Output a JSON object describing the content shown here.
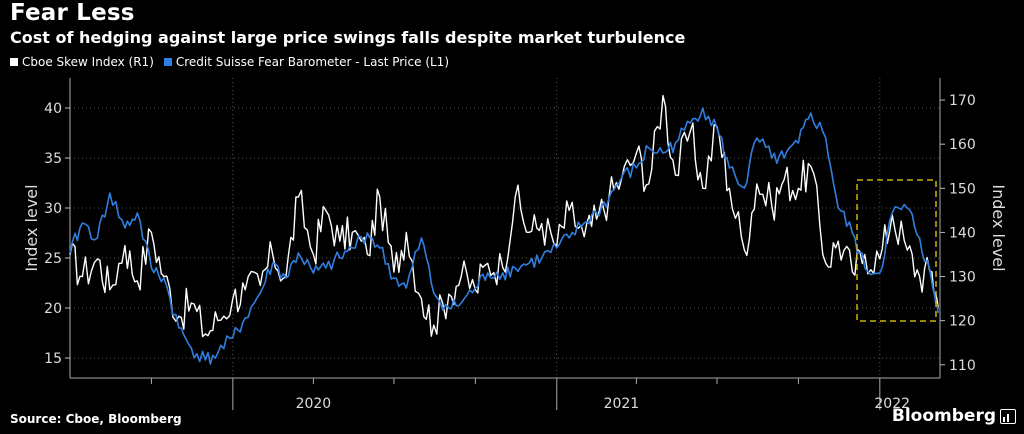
{
  "header": {
    "title": "Fear Less",
    "subtitle": "Cost of hedging against large price swings falls despite market turbulence"
  },
  "footer": {
    "source": "Source: Cboe, Bloomberg",
    "brand": "Bloomberg"
  },
  "colors": {
    "background": "#000000",
    "grid": "#5a5a5a",
    "skew": "#ffffff",
    "fear": "#2f7fe0",
    "highlight_box": "#c8b400"
  },
  "chart_data": {
    "type": "line",
    "legend": [
      "Cboe Skew Index (R1)",
      "Credit Suisse Fear Barometer - Last Price (L1)"
    ],
    "legend_placement": "top-left",
    "grid": true,
    "left_axis": {
      "label": "Index level",
      "ylim": [
        13,
        43
      ],
      "ticks": [
        15,
        20,
        25,
        30,
        35,
        40
      ]
    },
    "right_axis": {
      "label": "Index level",
      "ylim": [
        107,
        175
      ],
      "ticks": [
        110,
        120,
        130,
        140,
        150,
        160,
        170
      ]
    },
    "x_axis": {
      "range": [
        "2019-07-01",
        "2022-03-10"
      ],
      "tick_labels": [
        {
          "label": "2020",
          "at": "2020-04-01"
        },
        {
          "label": "2021",
          "at": "2021-03-15"
        },
        {
          "label": "2022",
          "at": "2022-01-15"
        }
      ],
      "major_ticks": [
        "2020-01-01",
        "2021-01-01",
        "2022-01-01"
      ],
      "minor_ticks": [
        "2019-10-01",
        "2020-04-01",
        "2020-07-01",
        "2020-10-01",
        "2021-04-01",
        "2021-07-01",
        "2021-10-01"
      ]
    },
    "series": [
      {
        "name": "Credit Suisse Fear Barometer - Last Price (L1)",
        "axis": "left",
        "points": [
          [
            "2019-07-01",
            25.5
          ],
          [
            "2019-07-15",
            28.5
          ],
          [
            "2019-08-01",
            27.0
          ],
          [
            "2019-08-15",
            31.5
          ],
          [
            "2019-09-01",
            28.0
          ],
          [
            "2019-09-15",
            29.5
          ],
          [
            "2019-10-01",
            24.0
          ],
          [
            "2019-10-15",
            23.0
          ],
          [
            "2019-11-01",
            18.0
          ],
          [
            "2019-11-15",
            16.0
          ],
          [
            "2019-12-01",
            14.8
          ],
          [
            "2019-12-15",
            15.5
          ],
          [
            "2020-01-01",
            17.0
          ],
          [
            "2020-01-15",
            19.0
          ],
          [
            "2020-02-01",
            21.5
          ],
          [
            "2020-02-15",
            24.5
          ],
          [
            "2020-03-01",
            23.0
          ],
          [
            "2020-03-15",
            25.5
          ],
          [
            "2020-04-01",
            23.5
          ],
          [
            "2020-04-15",
            24.0
          ],
          [
            "2020-05-01",
            25.0
          ],
          [
            "2020-05-15",
            26.0
          ],
          [
            "2020-06-01",
            27.5
          ],
          [
            "2020-06-15",
            26.0
          ],
          [
            "2020-07-01",
            23.0
          ],
          [
            "2020-07-15",
            22.0
          ],
          [
            "2020-08-01",
            27.0
          ],
          [
            "2020-08-15",
            21.5
          ],
          [
            "2020-09-01",
            20.0
          ],
          [
            "2020-09-15",
            20.5
          ],
          [
            "2020-10-01",
            22.0
          ],
          [
            "2020-10-15",
            23.5
          ],
          [
            "2020-11-01",
            23.5
          ],
          [
            "2020-11-15",
            24.0
          ],
          [
            "2020-12-01",
            24.5
          ],
          [
            "2020-12-15",
            25.0
          ],
          [
            "2021-01-01",
            26.0
          ],
          [
            "2021-01-15",
            27.0
          ],
          [
            "2021-02-01",
            28.5
          ],
          [
            "2021-02-15",
            29.5
          ],
          [
            "2021-03-01",
            31.0
          ],
          [
            "2021-03-15",
            33.0
          ],
          [
            "2021-04-01",
            34.0
          ],
          [
            "2021-04-15",
            36.0
          ],
          [
            "2021-05-01",
            35.5
          ],
          [
            "2021-05-15",
            36.5
          ],
          [
            "2021-06-01",
            38.5
          ],
          [
            "2021-06-15",
            40.0
          ],
          [
            "2021-07-01",
            38.0
          ],
          [
            "2021-07-15",
            34.0
          ],
          [
            "2021-08-01",
            32.0
          ],
          [
            "2021-08-15",
            37.0
          ],
          [
            "2021-09-01",
            35.0
          ],
          [
            "2021-09-15",
            35.0
          ],
          [
            "2021-10-01",
            36.5
          ],
          [
            "2021-10-15",
            39.5
          ],
          [
            "2021-11-01",
            37.0
          ],
          [
            "2021-11-15",
            30.0
          ],
          [
            "2021-12-01",
            27.5
          ],
          [
            "2021-12-15",
            24.0
          ],
          [
            "2022-01-01",
            23.5
          ],
          [
            "2022-01-15",
            29.5
          ],
          [
            "2022-02-01",
            30.0
          ],
          [
            "2022-02-15",
            27.0
          ],
          [
            "2022-03-01",
            22.5
          ],
          [
            "2022-03-08",
            19.5
          ]
        ]
      },
      {
        "name": "Cboe Skew Index (R1)",
        "axis": "right",
        "points": [
          [
            "2019-07-01",
            135
          ],
          [
            "2019-07-15",
            130
          ],
          [
            "2019-08-01",
            134
          ],
          [
            "2019-08-15",
            127
          ],
          [
            "2019-09-01",
            137
          ],
          [
            "2019-09-15",
            129
          ],
          [
            "2019-10-01",
            140
          ],
          [
            "2019-10-15",
            130
          ],
          [
            "2019-11-01",
            121
          ],
          [
            "2019-11-15",
            124
          ],
          [
            "2019-12-01",
            117
          ],
          [
            "2019-12-15",
            120
          ],
          [
            "2020-01-01",
            125
          ],
          [
            "2020-01-15",
            127
          ],
          [
            "2020-02-01",
            128
          ],
          [
            "2020-02-15",
            135
          ],
          [
            "2020-03-01",
            130
          ],
          [
            "2020-03-15",
            148
          ],
          [
            "2020-04-01",
            135
          ],
          [
            "2020-04-15",
            145
          ],
          [
            "2020-05-01",
            138
          ],
          [
            "2020-05-15",
            140
          ],
          [
            "2020-06-01",
            135
          ],
          [
            "2020-06-15",
            148
          ],
          [
            "2020-07-01",
            131
          ],
          [
            "2020-07-15",
            140
          ],
          [
            "2020-08-01",
            125
          ],
          [
            "2020-08-15",
            119
          ],
          [
            "2020-09-01",
            126
          ],
          [
            "2020-09-15",
            130
          ],
          [
            "2020-10-01",
            127
          ],
          [
            "2020-10-15",
            133
          ],
          [
            "2020-11-01",
            132
          ],
          [
            "2020-11-15",
            148
          ],
          [
            "2020-12-01",
            140
          ],
          [
            "2020-12-15",
            142
          ],
          [
            "2021-01-01",
            137
          ],
          [
            "2021-01-15",
            145
          ],
          [
            "2021-02-01",
            139
          ],
          [
            "2021-02-15",
            143
          ],
          [
            "2021-03-01",
            148
          ],
          [
            "2021-03-15",
            152
          ],
          [
            "2021-04-01",
            158
          ],
          [
            "2021-04-15",
            151
          ],
          [
            "2021-05-01",
            171
          ],
          [
            "2021-05-15",
            153
          ],
          [
            "2021-06-01",
            163
          ],
          [
            "2021-06-15",
            150
          ],
          [
            "2021-07-01",
            164
          ],
          [
            "2021-07-15",
            150
          ],
          [
            "2021-08-01",
            136
          ],
          [
            "2021-08-15",
            151
          ],
          [
            "2021-09-01",
            146
          ],
          [
            "2021-09-15",
            152
          ],
          [
            "2021-10-01",
            150
          ],
          [
            "2021-10-15",
            155
          ],
          [
            "2021-11-01",
            133
          ],
          [
            "2021-11-15",
            138
          ],
          [
            "2021-12-01",
            131
          ],
          [
            "2021-12-15",
            135
          ],
          [
            "2022-01-01",
            134
          ],
          [
            "2022-01-15",
            144
          ],
          [
            "2022-02-01",
            136
          ],
          [
            "2022-02-15",
            130
          ],
          [
            "2022-03-01",
            131
          ],
          [
            "2022-03-08",
            123
          ]
        ]
      }
    ]
  }
}
